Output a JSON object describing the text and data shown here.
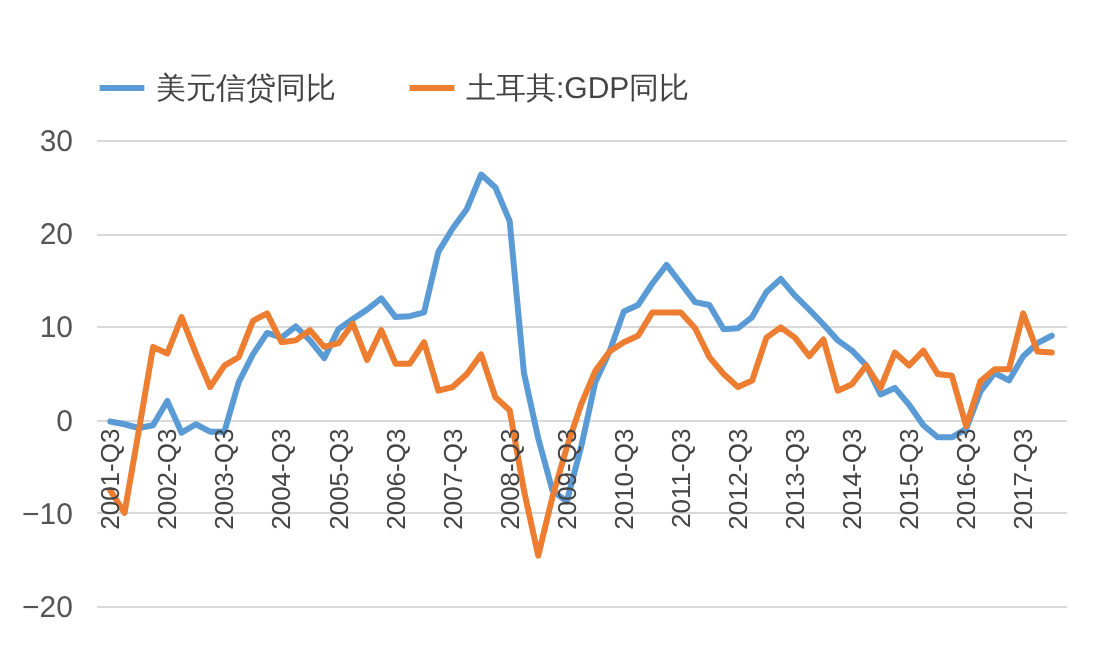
{
  "chart_data": {
    "type": "line",
    "categories": [
      "2001-Q3",
      null,
      null,
      null,
      "2002-Q3",
      null,
      null,
      null,
      "2003-Q3",
      null,
      null,
      null,
      "2004-Q3",
      null,
      null,
      null,
      "2005-Q3",
      null,
      null,
      null,
      "2006-Q3",
      null,
      null,
      null,
      "2007-Q3",
      null,
      null,
      null,
      "2008-Q3",
      null,
      null,
      null,
      "2009-Q3",
      null,
      null,
      null,
      "2010-Q3",
      null,
      null,
      null,
      "2011-Q3",
      null,
      null,
      null,
      "2012-Q3",
      null,
      null,
      null,
      "2013-Q3",
      null,
      null,
      null,
      "2014-Q3",
      null,
      null,
      null,
      "2015-Q3",
      null,
      null,
      null,
      "2016-Q3",
      null,
      null,
      null,
      "2017-Q3",
      null,
      null
    ],
    "series": [
      {
        "name": "美元信贷同比",
        "color": "#5b9bd5",
        "values": [
          -0.2,
          -0.5,
          -0.9,
          -0.6,
          2.0,
          -1.4,
          -0.5,
          -1.3,
          -1.3,
          4,
          7,
          9.3,
          8.8,
          10,
          8.5,
          6.6,
          9.7,
          10.8,
          11.8,
          13,
          11,
          11.1,
          11.5,
          18,
          20.5,
          22.6,
          26.3,
          24.9,
          21.3,
          5,
          -2,
          -7.6,
          -8.8,
          -3,
          4,
          7.3,
          11.6,
          12.3,
          14.6,
          16.6,
          14.6,
          12.6,
          12.3,
          9.7,
          9.8,
          11,
          13.7,
          15.1,
          13.3,
          11.8,
          10.2,
          8.5,
          7.4,
          5.8,
          2.7,
          3.4,
          1.6,
          -0.6,
          -1.9,
          -1.9,
          -1,
          3,
          5,
          4.2,
          6.8,
          8.2,
          9
        ]
      },
      {
        "name": "土耳其:GDP同比",
        "color": "#ed7d31",
        "values": [
          -7.6,
          -10,
          -1.2,
          7.8,
          7.1,
          11,
          7.1,
          3.5,
          5.8,
          6.7,
          10.6,
          11.4,
          8.3,
          8.5,
          9.6,
          7.8,
          8.2,
          10.3,
          6.4,
          9.6,
          6,
          6,
          8.3,
          3.1,
          3.5,
          4.9,
          7,
          2.4,
          1,
          -7.6,
          -14.6,
          -8.3,
          -3,
          1.6,
          5.2,
          7.3,
          8.3,
          9,
          11.5,
          11.5,
          11.5,
          9.8,
          6.7,
          4.9,
          3.5,
          4.2,
          8.8,
          9.9,
          8.8,
          6.8,
          8.6,
          3.1,
          3.8,
          5.8,
          3.4,
          7.2,
          5.8,
          7.4,
          4.9,
          4.7,
          -0.7,
          4.1,
          5.4,
          5.4,
          11.4,
          7.3,
          7.2
        ]
      }
    ],
    "ylim": [
      -20,
      30
    ],
    "yticks": [
      -20,
      -10,
      0,
      10,
      20,
      30
    ],
    "grid": "y",
    "legend": "top"
  }
}
